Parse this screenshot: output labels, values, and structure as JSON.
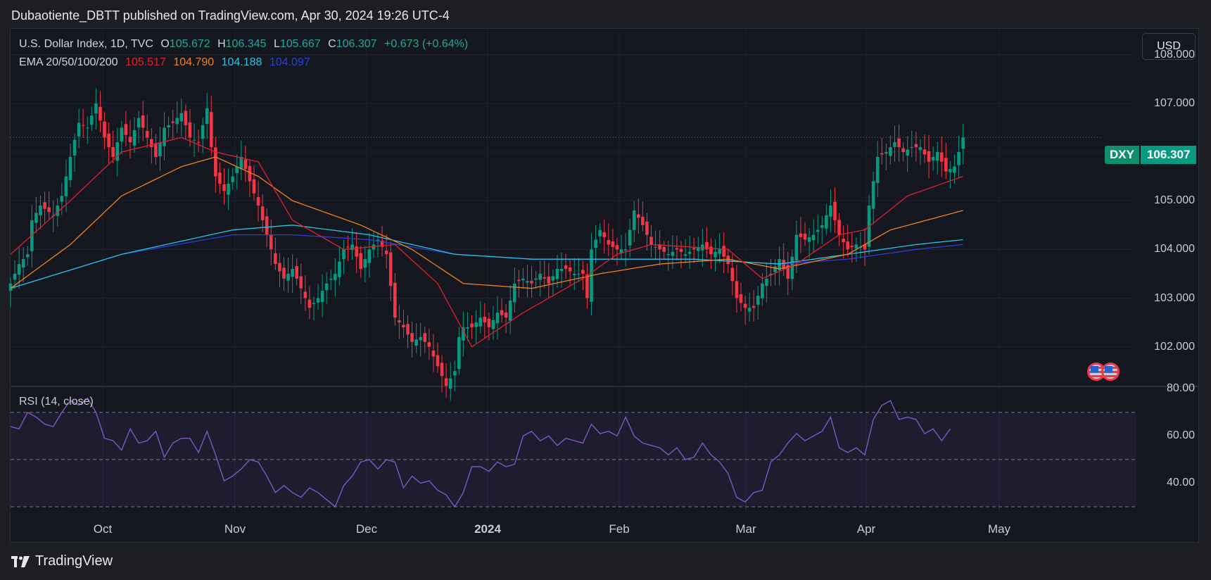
{
  "header": {
    "text": "Dubaotiente_DBTT published on TradingView.com, Apr 30, 2024 19:26 UTC-4"
  },
  "symbol": {
    "name": "U.S. Dollar Index, 1D, TVC",
    "o_label": "O",
    "o_value": "105.672",
    "h_label": "H",
    "h_value": "106.345",
    "l_label": "L",
    "l_value": "105.667",
    "c_label": "C",
    "c_value": "106.307",
    "change": "+0.673 (+0.64%)"
  },
  "ema": {
    "label": "EMA 20/50/100/200",
    "v20": "105.517",
    "v50": "104.790",
    "v100": "104.188",
    "v200": "104.097",
    "colors": {
      "ema20": "#e0202e",
      "ema50": "#f0821e",
      "ema100": "#27c5e0",
      "ema200": "#2d3fd6"
    }
  },
  "currency_button": "USD",
  "price_tag": {
    "symbol": "DXY",
    "price": "106.307"
  },
  "rsi": {
    "label": "RSI (14, close)"
  },
  "price_axis": [
    "108.000",
    "107.000",
    "106.000",
    "105.000",
    "104.000",
    "103.000",
    "102.000"
  ],
  "rsi_axis": [
    "80.00",
    "60.00",
    "40.00"
  ],
  "time_axis": [
    "Oct",
    "Nov",
    "Dec",
    "2024",
    "Feb",
    "Mar",
    "Apr",
    "May"
  ],
  "footer": {
    "brand": "TradingView"
  },
  "colors": {
    "up": "#089981",
    "down": "#f23645",
    "rsi_line": "#7e57c2",
    "background": "#141720"
  },
  "chart_data": {
    "type": "candlestick",
    "ylim": [
      101.2,
      108.4
    ],
    "rsi_ylim": [
      27,
      81
    ],
    "rsi_bands": [
      70,
      50,
      30
    ],
    "anchors": [
      [
        0,
        103.3
      ],
      [
        2,
        103.7
      ],
      [
        4,
        103.9
      ],
      [
        5,
        104.6
      ],
      [
        7,
        104.9
      ],
      [
        10,
        104.7
      ],
      [
        12,
        105.1
      ],
      [
        14,
        105.9
      ],
      [
        16,
        106.6
      ],
      [
        18,
        106.5
      ],
      [
        20,
        107.0
      ],
      [
        22,
        106.3
      ],
      [
        24,
        105.9
      ],
      [
        26,
        106.5
      ],
      [
        28,
        106.2
      ],
      [
        30,
        106.7
      ],
      [
        32,
        106.3
      ],
      [
        34,
        105.9
      ],
      [
        36,
        106.5
      ],
      [
        38,
        106.6
      ],
      [
        40,
        106.8
      ],
      [
        42,
        106.3
      ],
      [
        44,
        106.2
      ],
      [
        46,
        106.9
      ],
      [
        47,
        106.1
      ],
      [
        48,
        105.5
      ],
      [
        50,
        105.2
      ],
      [
        52,
        105.5
      ],
      [
        54,
        105.9
      ],
      [
        56,
        105.4
      ],
      [
        58,
        104.9
      ],
      [
        60,
        104.3
      ],
      [
        62,
        103.7
      ],
      [
        64,
        103.4
      ],
      [
        66,
        103.6
      ],
      [
        68,
        103.2
      ],
      [
        70,
        102.8
      ],
      [
        72,
        103.0
      ],
      [
        74,
        103.3
      ],
      [
        76,
        103.5
      ],
      [
        78,
        104.0
      ],
      [
        80,
        104.1
      ],
      [
        82,
        103.6
      ],
      [
        84,
        104.0
      ],
      [
        86,
        104.2
      ],
      [
        88,
        103.9
      ],
      [
        90,
        102.6
      ],
      [
        92,
        102.4
      ],
      [
        94,
        102.1
      ],
      [
        96,
        102.2
      ],
      [
        98,
        102.0
      ],
      [
        100,
        101.6
      ],
      [
        102,
        101.2
      ],
      [
        104,
        101.5
      ],
      [
        105,
        102.2
      ],
      [
        106,
        102.4
      ],
      [
        108,
        102.4
      ],
      [
        110,
        102.6
      ],
      [
        112,
        102.4
      ],
      [
        114,
        102.7
      ],
      [
        116,
        102.6
      ],
      [
        118,
        103.3
      ],
      [
        120,
        103.4
      ],
      [
        122,
        103.3
      ],
      [
        124,
        103.5
      ],
      [
        126,
        103.3
      ],
      [
        128,
        103.6
      ],
      [
        130,
        103.6
      ],
      [
        132,
        103.5
      ],
      [
        134,
        103.5
      ],
      [
        135,
        103.0
      ],
      [
        136,
        104.0
      ],
      [
        138,
        104.4
      ],
      [
        140,
        104.1
      ],
      [
        142,
        104.0
      ],
      [
        144,
        104.0
      ],
      [
        146,
        104.8
      ],
      [
        148,
        104.5
      ],
      [
        150,
        104.1
      ],
      [
        152,
        104.0
      ],
      [
        154,
        103.9
      ],
      [
        156,
        104.0
      ],
      [
        158,
        103.9
      ],
      [
        160,
        104.0
      ],
      [
        162,
        104.1
      ],
      [
        164,
        103.9
      ],
      [
        166,
        104.0
      ],
      [
        168,
        103.7
      ],
      [
        170,
        103.0
      ],
      [
        172,
        102.8
      ],
      [
        174,
        102.8
      ],
      [
        176,
        103.3
      ],
      [
        178,
        103.5
      ],
      [
        180,
        103.8
      ],
      [
        182,
        103.4
      ],
      [
        184,
        104.3
      ],
      [
        186,
        104.2
      ],
      [
        188,
        104.3
      ],
      [
        190,
        104.5
      ],
      [
        192,
        104.9
      ],
      [
        194,
        104.3
      ],
      [
        196,
        104.0
      ],
      [
        198,
        104.1
      ],
      [
        200,
        104.0
      ],
      [
        201,
        104.9
      ],
      [
        203,
        105.9
      ],
      [
        205,
        106.0
      ],
      [
        207,
        106.2
      ],
      [
        209,
        106.0
      ],
      [
        211,
        106.1
      ],
      [
        213,
        106.1
      ],
      [
        215,
        105.8
      ],
      [
        217,
        106.0
      ],
      [
        219,
        105.6
      ],
      [
        221,
        105.7
      ],
      [
        223,
        106.3
      ]
    ],
    "rsi_anchors": [
      [
        0,
        64
      ],
      [
        2,
        63
      ],
      [
        4,
        70
      ],
      [
        6,
        68
      ],
      [
        8,
        65
      ],
      [
        10,
        64
      ],
      [
        12,
        70
      ],
      [
        14,
        75
      ],
      [
        16,
        73
      ],
      [
        18,
        76
      ],
      [
        20,
        70
      ],
      [
        22,
        59
      ],
      [
        24,
        58
      ],
      [
        26,
        54
      ],
      [
        28,
        63
      ],
      [
        30,
        57
      ],
      [
        32,
        58
      ],
      [
        34,
        62
      ],
      [
        36,
        51
      ],
      [
        38,
        57
      ],
      [
        40,
        59
      ],
      [
        42,
        59
      ],
      [
        44,
        53
      ],
      [
        46,
        62
      ],
      [
        48,
        52
      ],
      [
        50,
        41
      ],
      [
        52,
        43
      ],
      [
        54,
        46
      ],
      [
        56,
        50
      ],
      [
        58,
        49
      ],
      [
        60,
        43
      ],
      [
        62,
        36
      ],
      [
        64,
        39
      ],
      [
        66,
        36
      ],
      [
        68,
        34
      ],
      [
        70,
        38
      ],
      [
        72,
        36
      ],
      [
        74,
        33
      ],
      [
        76,
        30
      ],
      [
        78,
        39
      ],
      [
        80,
        43
      ],
      [
        82,
        49
      ],
      [
        84,
        50
      ],
      [
        86,
        46
      ],
      [
        88,
        50
      ],
      [
        90,
        49
      ],
      [
        92,
        38
      ],
      [
        94,
        43
      ],
      [
        96,
        40
      ],
      [
        98,
        41
      ],
      [
        100,
        37
      ],
      [
        102,
        35
      ],
      [
        104,
        30
      ],
      [
        106,
        36
      ],
      [
        108,
        47
      ],
      [
        110,
        47
      ],
      [
        112,
        45
      ],
      [
        114,
        49
      ],
      [
        116,
        47
      ],
      [
        118,
        48
      ],
      [
        120,
        60
      ],
      [
        122,
        62
      ],
      [
        124,
        58
      ],
      [
        126,
        60
      ],
      [
        128,
        56
      ],
      [
        130,
        59
      ],
      [
        132,
        58
      ],
      [
        134,
        57
      ],
      [
        136,
        65
      ],
      [
        138,
        61
      ],
      [
        140,
        62
      ],
      [
        142,
        60
      ],
      [
        144,
        68
      ],
      [
        146,
        60
      ],
      [
        148,
        57
      ],
      [
        150,
        56
      ],
      [
        152,
        55
      ],
      [
        154,
        52
      ],
      [
        156,
        55
      ],
      [
        158,
        50
      ],
      [
        160,
        51
      ],
      [
        162,
        57
      ],
      [
        164,
        52
      ],
      [
        166,
        49
      ],
      [
        168,
        44
      ],
      [
        170,
        34
      ],
      [
        172,
        32
      ],
      [
        174,
        36
      ],
      [
        176,
        37
      ],
      [
        178,
        49
      ],
      [
        180,
        52
      ],
      [
        182,
        57
      ],
      [
        184,
        61
      ],
      [
        186,
        58
      ],
      [
        188,
        60
      ],
      [
        190,
        62
      ],
      [
        192,
        68
      ],
      [
        194,
        55
      ],
      [
        196,
        53
      ],
      [
        198,
        55
      ],
      [
        200,
        52
      ],
      [
        202,
        67
      ],
      [
        204,
        73
      ],
      [
        206,
        75
      ],
      [
        208,
        67
      ],
      [
        210,
        68
      ],
      [
        212,
        67
      ],
      [
        214,
        61
      ],
      [
        216,
        63
      ],
      [
        218,
        58
      ],
      [
        220,
        63
      ]
    ],
    "ema_anchors": {
      "ema20": [
        [
          0,
          103.9
        ],
        [
          14,
          105.0
        ],
        [
          26,
          106.0
        ],
        [
          40,
          106.3
        ],
        [
          48,
          106.0
        ],
        [
          58,
          105.8
        ],
        [
          66,
          104.6
        ],
        [
          78,
          104.0
        ],
        [
          90,
          104.1
        ],
        [
          100,
          103.3
        ],
        [
          108,
          102.0
        ],
        [
          120,
          102.7
        ],
        [
          134,
          103.4
        ],
        [
          142,
          103.9
        ],
        [
          150,
          104.1
        ],
        [
          168,
          104.0
        ],
        [
          176,
          103.4
        ],
        [
          184,
          103.7
        ],
        [
          194,
          104.3
        ],
        [
          200,
          104.4
        ],
        [
          210,
          105.1
        ],
        [
          223,
          105.5
        ]
      ],
      "ema50": [
        [
          0,
          103.2
        ],
        [
          14,
          104.1
        ],
        [
          26,
          105.1
        ],
        [
          40,
          105.7
        ],
        [
          48,
          105.9
        ],
        [
          58,
          105.5
        ],
        [
          66,
          105.0
        ],
        [
          82,
          104.5
        ],
        [
          94,
          104.0
        ],
        [
          106,
          103.3
        ],
        [
          122,
          103.2
        ],
        [
          138,
          103.5
        ],
        [
          152,
          103.7
        ],
        [
          168,
          103.8
        ],
        [
          180,
          103.6
        ],
        [
          196,
          103.9
        ],
        [
          206,
          104.4
        ],
        [
          223,
          104.8
        ]
      ],
      "ema100": [
        [
          0,
          103.2
        ],
        [
          26,
          103.9
        ],
        [
          52,
          104.4
        ],
        [
          66,
          104.5
        ],
        [
          84,
          104.3
        ],
        [
          104,
          103.9
        ],
        [
          122,
          103.8
        ],
        [
          140,
          103.8
        ],
        [
          160,
          103.8
        ],
        [
          180,
          103.7
        ],
        [
          196,
          103.9
        ],
        [
          212,
          104.1
        ],
        [
          223,
          104.2
        ]
      ],
      "ema200": [
        [
          0,
          103.2
        ],
        [
          26,
          103.9
        ],
        [
          52,
          104.3
        ],
        [
          66,
          104.3
        ],
        [
          84,
          104.2
        ],
        [
          104,
          103.9
        ],
        [
          122,
          103.8
        ],
        [
          140,
          103.8
        ],
        [
          160,
          103.8
        ],
        [
          180,
          103.7
        ],
        [
          196,
          103.8
        ],
        [
          212,
          104.0
        ],
        [
          223,
          104.1
        ]
      ]
    }
  }
}
